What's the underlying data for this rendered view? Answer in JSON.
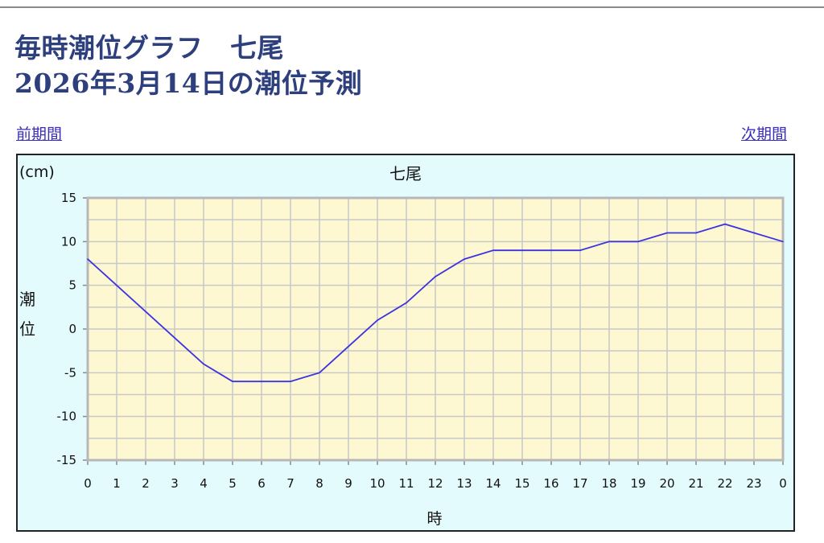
{
  "page": {
    "title_line1": "毎時潮位グラフ　七尾",
    "title_line2": "2026年3月14日の潮位予測",
    "prev_link": "前期間",
    "next_link": "次期間"
  },
  "colors": {
    "title": "#2d3f7c",
    "link": "#3a2dbb",
    "chart_bg": "#e4fbfd",
    "plot_bg": "#fdf8d2",
    "line": "#3d33e0",
    "grid": "#c8c8c8"
  },
  "chart_data": {
    "type": "line",
    "title": "七尾",
    "unit_label": "(cm)",
    "ylabel": "潮位",
    "xlabel": "時",
    "categories": [
      "0",
      "1",
      "2",
      "3",
      "4",
      "5",
      "6",
      "7",
      "8",
      "9",
      "10",
      "11",
      "12",
      "13",
      "14",
      "15",
      "16",
      "17",
      "18",
      "19",
      "20",
      "21",
      "22",
      "23",
      "0"
    ],
    "ylim": [
      -15,
      15
    ],
    "yticks": [
      15,
      10,
      5,
      0,
      -5,
      -10,
      -15
    ],
    "grid": true,
    "series": [
      {
        "values": [
          8,
          5,
          2,
          -1,
          -4,
          -6,
          -6,
          -6,
          -5,
          -2,
          1,
          3,
          6,
          8,
          9,
          9,
          9,
          9,
          10,
          10,
          11,
          11,
          12,
          11,
          10
        ]
      }
    ]
  }
}
